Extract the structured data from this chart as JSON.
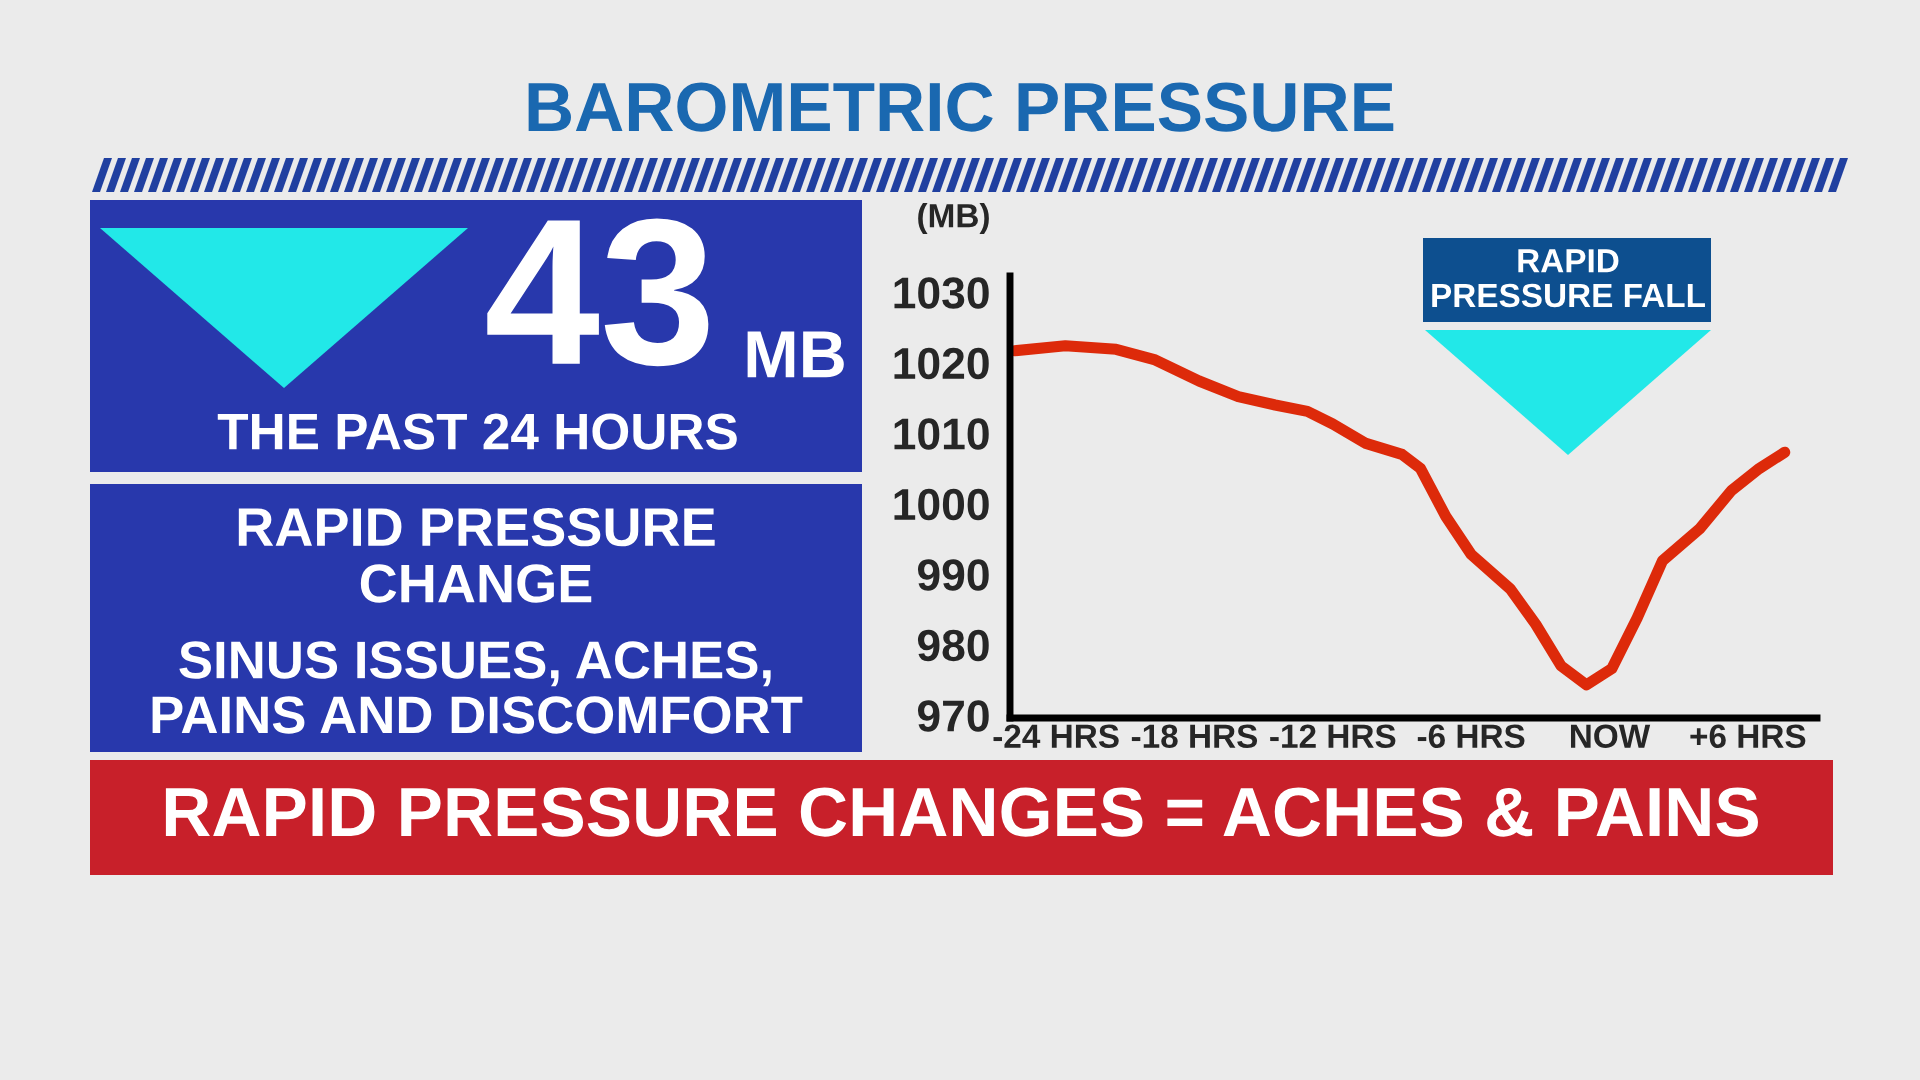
{
  "chart_data": {
    "type": "line",
    "title": "BAROMETRIC PRESSURE",
    "ylabel": "(MB)",
    "annotations": [
      "43",
      "MB",
      "THE PAST 24 HOURS",
      "RAPID PRESSURE\nCHANGE",
      "SINUS ISSUES, ACHES,\nPAINS AND DISCOMFORT",
      "RAPID PRESSURE CHANGES = ACHES & PAINS",
      "RAPID\nPRESSURE FALL"
    ],
    "x": [
      -25.8,
      -23.6,
      -21.4,
      -19.7,
      -17.8,
      -16.1,
      -14.5,
      -13.1,
      -12.0,
      -10.6,
      -9.0,
      -8.2,
      -7.1,
      -6.0,
      -4.3,
      -3.2,
      -2.1,
      -1.0,
      0.1,
      1.2,
      2.3,
      3.9,
      5.3,
      6.5,
      7.6
    ],
    "series": [
      {
        "color": "#dd2a0a",
        "values": [
          1021.7,
          1022.4,
          1021.9,
          1020.4,
          1017.4,
          1015.2,
          1014.0,
          1013.1,
          1011.3,
          1008.6,
          1007.0,
          1005.0,
          998.2,
          992.8,
          987.9,
          982.9,
          977.0,
          974.3,
          976.6,
          983.8,
          991.9,
          996.4,
          1001.9,
          1005.0,
          1007.3
        ]
      }
    ],
    "xlim": [
      -26,
      9
    ],
    "ylim": [
      969.6,
      1032.3
    ],
    "xticks": [
      {
        "value": -24,
        "label": "-24 HRS"
      },
      {
        "value": -18,
        "label": "-18 HRS"
      },
      {
        "value": -12,
        "label": "-12 HRS"
      },
      {
        "value": -6,
        "label": "-6 HRS"
      },
      {
        "value": 0,
        "label": "NOW"
      },
      {
        "value": 6,
        "label": "+6 HRS"
      }
    ],
    "yticks": [
      970,
      980,
      990,
      1000,
      1010,
      1020,
      1030
    ],
    "grid": false,
    "legend": false,
    "marker": "none",
    "line_style": "solid"
  }
}
